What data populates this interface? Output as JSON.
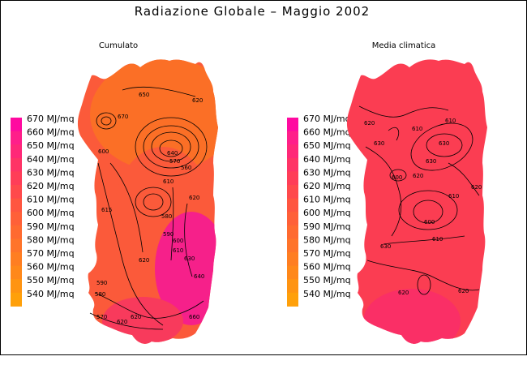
{
  "title": "Radiazione Globale  –  Maggio 2002",
  "panels": [
    {
      "name": "Cumulato",
      "contour_labels": [
        "670",
        "650",
        "620",
        "640",
        "570",
        "560",
        "600",
        "610",
        "580",
        "620",
        "590",
        "615",
        "620",
        "600",
        "610",
        "630",
        "640",
        "590",
        "580",
        "570",
        "620",
        "620",
        "660"
      ]
    },
    {
      "name": "Media climatica",
      "contour_labels": [
        "620",
        "630",
        "610",
        "610",
        "630",
        "630",
        "620",
        "600",
        "610",
        "600",
        "620",
        "610",
        "630",
        "620",
        "620"
      ]
    }
  ],
  "legend": {
    "unit": "MJ/mq",
    "levels": [
      670,
      660,
      650,
      640,
      630,
      620,
      610,
      600,
      590,
      580,
      570,
      560,
      550,
      540
    ],
    "colors": [
      "#ff0aa0",
      "#ff1f8a",
      "#ff2878",
      "#ff3466",
      "#ff3e58",
      "#ff4a4c",
      "#ff5640",
      "#ff6038",
      "#ff6a30",
      "#ff742a",
      "#ff7e22",
      "#ff881a",
      "#ff9412",
      "#ffa00a"
    ]
  },
  "colors": {
    "cumulato_north": "#fb6f26",
    "cumulato_mid": "#fb5a3a",
    "cumulato_south": "#f83a5c",
    "cumulato_se": "#f6208a",
    "media_main": "#fb3d52",
    "media_south": "#fa2f66"
  }
}
